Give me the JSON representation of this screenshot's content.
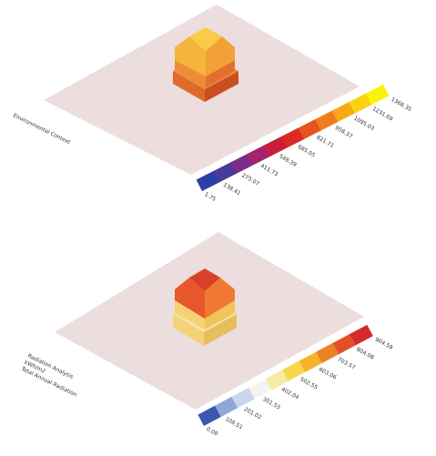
{
  "panels": [
    {
      "caption": [
        "Environmental Context"
      ],
      "legend": {
        "labels": [
          "1.75",
          "138.41",
          "275.07",
          "411.73",
          "548.39",
          "685.05",
          "821.71",
          "958.37",
          "1095.03",
          "1231.69",
          "1368.35"
        ],
        "colors": [
          "#2b3fa8",
          "#4a3a9a",
          "#7a2c8a",
          "#a5226e",
          "#c81e3c",
          "#dc2a22",
          "#e8521e",
          "#f07d1c",
          "#f6aa18",
          "#fad212",
          "#fdf20c"
        ]
      }
    },
    {
      "caption": [
        "Radiation Analysis",
        "kWh/m2",
        "Total Annual Radiation"
      ],
      "legend": {
        "labels": [
          "0.00",
          "100.51",
          "201.02",
          "301.53",
          "402.04",
          "502.55",
          "603.06",
          "703.57",
          "804.08",
          "904.59"
        ],
        "colors": [
          "#3a56b0",
          "#8fa6d6",
          "#c9d6ee",
          "#f6f4f0",
          "#f8eba4",
          "#f7d84a",
          "#f3b42a",
          "#ec8126",
          "#e2502a",
          "#d42a2a"
        ]
      }
    }
  ]
}
